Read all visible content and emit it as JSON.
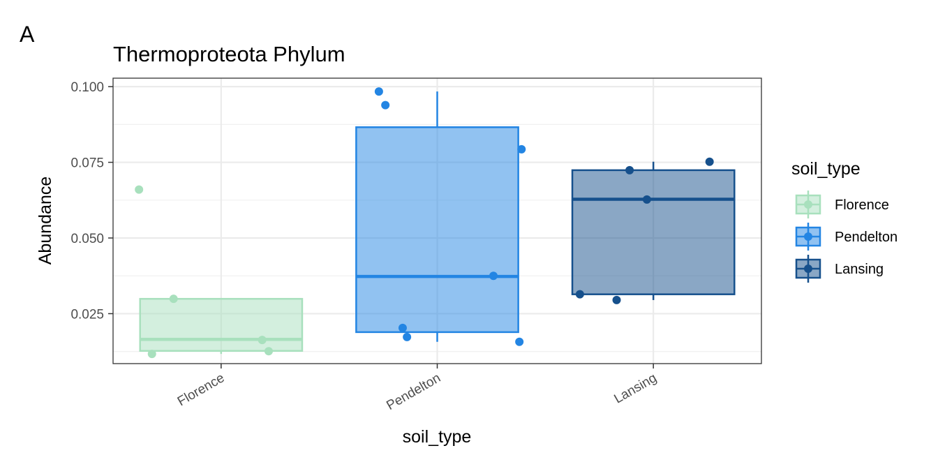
{
  "panel_tag": "A",
  "chart_data": {
    "type": "boxplot",
    "title": "Thermoproteota Phylum",
    "xlabel": "soil_type",
    "ylabel": "Abundance",
    "categories": [
      "Florence",
      "Pendelton",
      "Lansing"
    ],
    "ylim": [
      0.0085,
      0.1028
    ],
    "yticks": [
      0.025,
      0.05,
      0.075,
      0.1
    ],
    "ytick_labels": [
      "0.025",
      "0.050",
      "0.075",
      "0.100"
    ],
    "grid": true,
    "legend": {
      "title": "soil_type",
      "position": "right",
      "entries": [
        "Florence",
        "Pendelton",
        "Lansing"
      ]
    },
    "colors": {
      "Florence": "#a8e0bd",
      "Pendelton": "#2385e3",
      "Lansing": "#16508c"
    },
    "boxes": [
      {
        "name": "Florence",
        "whisker_low": 0.0117,
        "q1": 0.0127,
        "median": 0.0165,
        "q3": 0.0299,
        "whisker_high": 0.0299
      },
      {
        "name": "Pendelton",
        "whisker_low": 0.0157,
        "q1": 0.0189,
        "median": 0.0373,
        "q3": 0.0866,
        "whisker_high": 0.0984
      },
      {
        "name": "Lansing",
        "whisker_low": 0.0295,
        "q1": 0.0314,
        "median": 0.0628,
        "q3": 0.0724,
        "whisker_high": 0.0752
      }
    ],
    "points": [
      {
        "category": "Florence",
        "jitter": -0.38,
        "y": 0.066
      },
      {
        "category": "Florence",
        "jitter": -0.22,
        "y": 0.0299
      },
      {
        "category": "Florence",
        "jitter": 0.19,
        "y": 0.0163
      },
      {
        "category": "Florence",
        "jitter": 0.22,
        "y": 0.0126
      },
      {
        "category": "Florence",
        "jitter": -0.32,
        "y": 0.0117
      },
      {
        "category": "Pendelton",
        "jitter": -0.27,
        "y": 0.0984
      },
      {
        "category": "Pendelton",
        "jitter": -0.24,
        "y": 0.0939
      },
      {
        "category": "Pendelton",
        "jitter": 0.39,
        "y": 0.0793
      },
      {
        "category": "Pendelton",
        "jitter": 0.26,
        "y": 0.0375
      },
      {
        "category": "Pendelton",
        "jitter": -0.16,
        "y": 0.0203
      },
      {
        "category": "Pendelton",
        "jitter": -0.14,
        "y": 0.0173
      },
      {
        "category": "Pendelton",
        "jitter": 0.38,
        "y": 0.0157
      },
      {
        "category": "Lansing",
        "jitter": -0.11,
        "y": 0.0724
      },
      {
        "category": "Lansing",
        "jitter": 0.26,
        "y": 0.0752
      },
      {
        "category": "Lansing",
        "jitter": -0.03,
        "y": 0.0627
      },
      {
        "category": "Lansing",
        "jitter": -0.34,
        "y": 0.0314
      },
      {
        "category": "Lansing",
        "jitter": -0.17,
        "y": 0.0295
      }
    ]
  }
}
